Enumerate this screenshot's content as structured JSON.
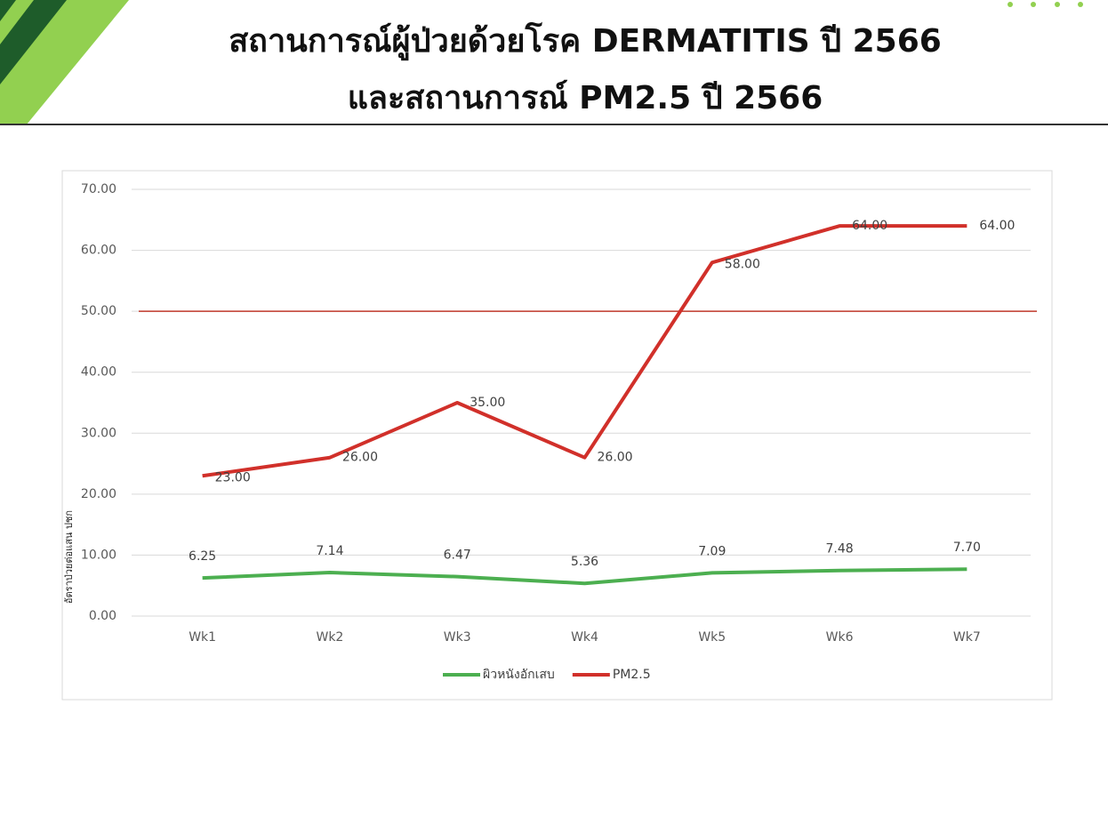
{
  "header": {
    "title_line1": "สถานการณ์ผู้ป่วยด้วยโรค DERMATITIS ปี 2566",
    "title_line2": "และสถานการณ์ PM2.5 ปี 2566"
  },
  "chart_data": {
    "type": "line",
    "y_label": "อัตราป่วยต่อแสน ปชก",
    "categories": [
      "Wk1",
      "Wk2",
      "Wk3",
      "Wk4",
      "Wk5",
      "Wk6",
      "Wk7"
    ],
    "series": [
      {
        "name": "ผิวหนังอักเสบ",
        "color": "#4caf50",
        "values": [
          6.25,
          7.14,
          6.47,
          5.36,
          7.09,
          7.48,
          7.7
        ],
        "value_labels": [
          "6.25",
          "7.14",
          "6.47",
          "5.36",
          "7.09",
          "7.48",
          "7.70"
        ]
      },
      {
        "name": "PM2.5",
        "color": "#d1302a",
        "values": [
          23,
          26,
          35,
          26,
          58,
          64,
          64
        ],
        "value_labels": [
          "23.00",
          "26.00",
          "35.00",
          "26.00",
          "58.00",
          "64.00",
          "64.00"
        ]
      }
    ],
    "reference_line": {
      "value": 50,
      "color": "#c0392b"
    },
    "ylim": [
      0,
      70
    ],
    "yticks": [
      {
        "value": 0,
        "label": "0.00"
      },
      {
        "value": 10,
        "label": "10.00"
      },
      {
        "value": 20,
        "label": "20.00"
      },
      {
        "value": 30,
        "label": "30.00"
      },
      {
        "value": 40,
        "label": "40.00"
      },
      {
        "value": 50,
        "label": "50.00"
      },
      {
        "value": 60,
        "label": "60.00"
      },
      {
        "value": 70,
        "label": "70.00"
      }
    ],
    "grid": true,
    "legend": "bottom"
  }
}
